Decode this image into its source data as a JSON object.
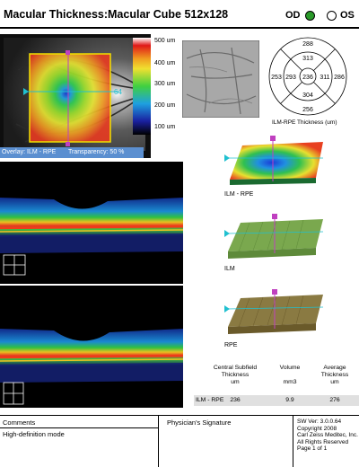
{
  "header": {
    "title": "Macular Thickness:Macular Cube 512x128",
    "od_label": "OD",
    "os_label": "OS",
    "selected_eye": "OD"
  },
  "thickness_map": {
    "scale_labels": [
      "500 um",
      "400 um",
      "300 um",
      "200 um",
      "100 um"
    ],
    "overlay_text": "Overlay: ILM - RPE",
    "transparency_text": "Transparency: 50 %",
    "marker_left": "64"
  },
  "etdrs": {
    "caption": "ILM-RPE Thickness (um)",
    "superior_outer": "288",
    "superior_inner": "313",
    "nasal_outer": "253",
    "nasal_inner": "293",
    "center": "236",
    "temporal_inner": "311",
    "temporal_outer": "286",
    "inferior_inner": "304",
    "inferior_outer": "256"
  },
  "surfaces": {
    "ilm_rpe_label": "ILM - RPE",
    "ilm_label": "ILM",
    "rpe_label": "RPE"
  },
  "summary_table": {
    "headers": [
      [
        "Central Subfield",
        "Thickness",
        "um"
      ],
      [
        "Volume",
        "",
        "mm3"
      ],
      [
        "Average",
        "Thickness",
        "um"
      ]
    ],
    "row_label": "ILM - RPE",
    "values": [
      "236",
      "9.9",
      "276"
    ]
  },
  "footer": {
    "comments_label": "Comments",
    "comments_value": "High-definition mode",
    "signature_label": "Physician's Signature",
    "version_lines": [
      "SW Ver: 3.0.0.64",
      "Copyright 2008",
      "Carl Zeiss Meditec, Inc.",
      "All Rights Reserved",
      "Page 1 of 1"
    ]
  }
}
